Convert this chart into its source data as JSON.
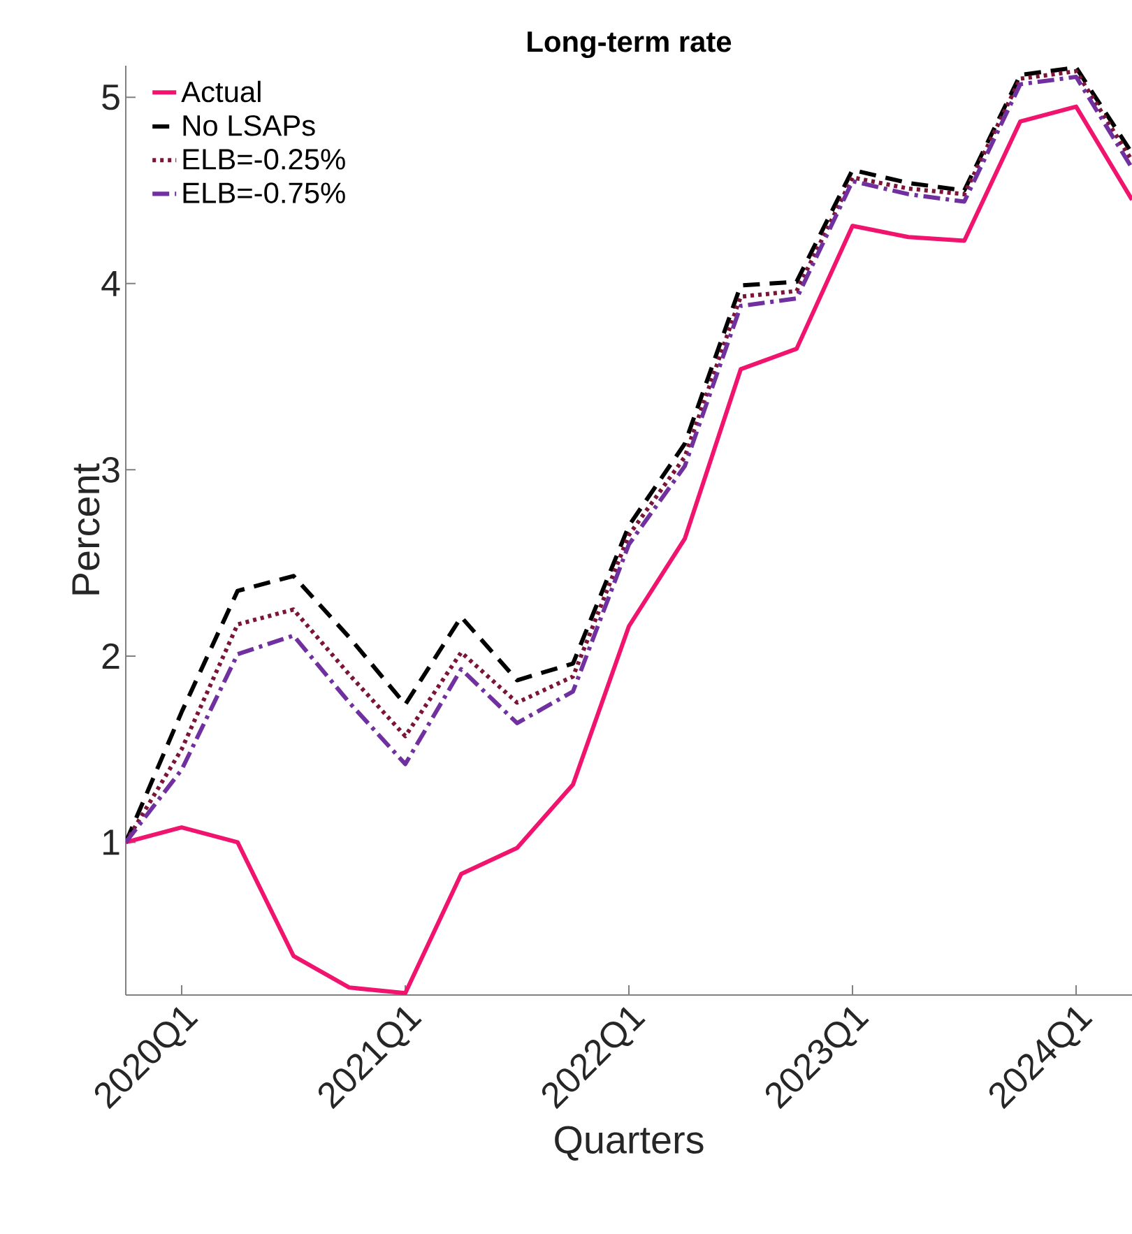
{
  "chart_data": {
    "type": "line",
    "title": "Long-term rate",
    "xlabel": "Quarters",
    "ylabel": "Percent",
    "categories": [
      null,
      "2020Q1",
      null,
      null,
      null,
      "2021Q1",
      null,
      null,
      null,
      "2022Q1",
      null,
      null,
      null,
      "2023Q1",
      null,
      null,
      null,
      "2024Q1",
      null
    ],
    "series": [
      {
        "name": "Actual",
        "color": "#f0146e",
        "line_style": "solid",
        "values": [
          1.0,
          1.08,
          1.0,
          0.39,
          0.22,
          0.19,
          0.83,
          0.97,
          1.31,
          2.16,
          2.63,
          3.54,
          3.65,
          4.31,
          4.25,
          4.23,
          4.87,
          4.95,
          4.45
        ]
      },
      {
        "name": "No LSAPs",
        "color": "#000000",
        "line_style": "dashed",
        "values": [
          1.0,
          1.7,
          2.35,
          2.43,
          2.1,
          1.74,
          2.21,
          1.87,
          1.96,
          2.7,
          3.14,
          3.99,
          4.01,
          4.61,
          4.54,
          4.5,
          5.12,
          5.16,
          4.7
        ]
      },
      {
        "name": "ELB=-0.25%",
        "color": "#7b1538",
        "line_style": "dotted",
        "values": [
          1.0,
          1.5,
          2.17,
          2.25,
          1.9,
          1.57,
          2.02,
          1.75,
          1.89,
          2.65,
          3.07,
          3.93,
          3.96,
          4.57,
          4.51,
          4.48,
          5.1,
          5.14,
          4.66
        ]
      },
      {
        "name": "ELB=-0.75%",
        "color": "#7030a0",
        "line_style": "dashdot",
        "values": [
          1.0,
          1.39,
          2.01,
          2.11,
          1.75,
          1.42,
          1.93,
          1.64,
          1.81,
          2.6,
          3.02,
          3.88,
          3.92,
          4.55,
          4.48,
          4.44,
          5.07,
          5.11,
          4.62
        ]
      }
    ],
    "ylim": [
      0.18,
      5.17
    ],
    "yticks": [
      1,
      2,
      3,
      4,
      5
    ],
    "legend": "top left",
    "grid": false
  }
}
